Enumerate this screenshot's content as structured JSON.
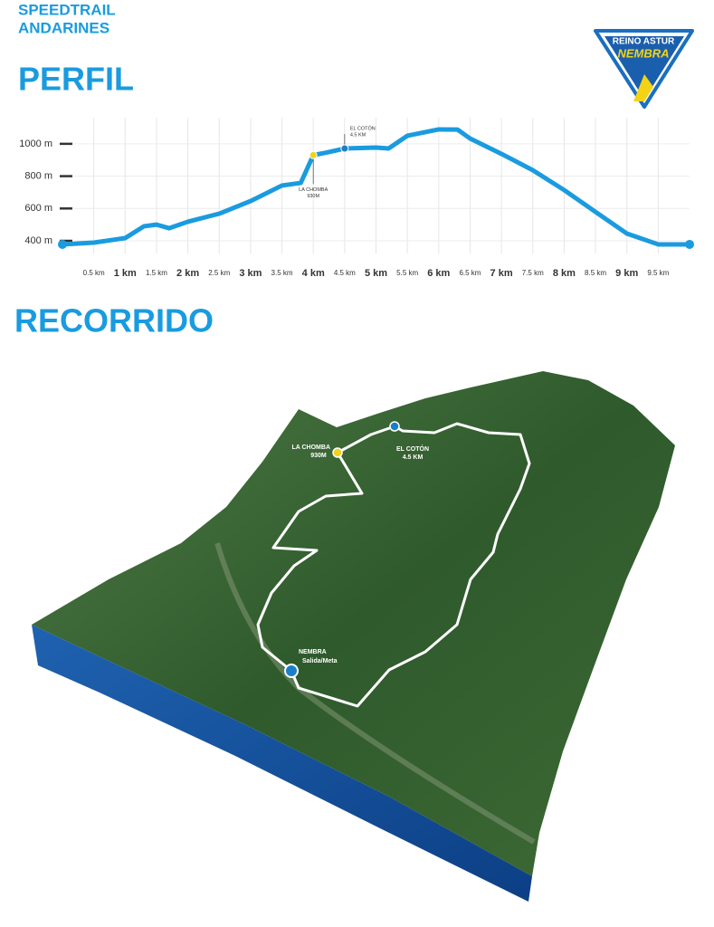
{
  "header": {
    "lines": [
      "SPEEDTRAIL",
      "ANDARINES"
    ]
  },
  "logo": {
    "lines": [
      "REINO ASTUR",
      "NEMBRA"
    ]
  },
  "chart_data": {
    "type": "line",
    "title": "PERFIL",
    "color": "#1a9be0",
    "x": [
      0,
      0.5,
      1,
      1.3,
      1.5,
      1.7,
      2,
      2.5,
      3,
      3.5,
      3.8,
      4,
      4.2,
      4.5,
      5,
      5.2,
      5.5,
      6,
      6.3,
      6.5,
      7,
      7.5,
      8,
      8.5,
      9,
      9.5,
      10
    ],
    "values": [
      378,
      389,
      417,
      490,
      500,
      478,
      518,
      568,
      646,
      742,
      758,
      930,
      945,
      971,
      977,
      971,
      1050,
      1089,
      1088,
      1033,
      938,
      837,
      714,
      579,
      445,
      378,
      378
    ],
    "xlim": [
      0,
      10
    ],
    "ylim": [
      320,
      1160
    ],
    "xticks": [
      {
        "value": 0.5,
        "label": "0.5 km"
      },
      {
        "value": 1,
        "label": "1 km"
      },
      {
        "value": 1.5,
        "label": "1.5 km"
      },
      {
        "value": 2,
        "label": "2 km"
      },
      {
        "value": 2.5,
        "label": "2.5 km"
      },
      {
        "value": 3,
        "label": "3 km"
      },
      {
        "value": 3.5,
        "label": "3.5 km"
      },
      {
        "value": 4,
        "label": "4 km"
      },
      {
        "value": 4.5,
        "label": "4.5 km"
      },
      {
        "value": 5,
        "label": "5 km"
      },
      {
        "value": 5.5,
        "label": "5.5 km"
      },
      {
        "value": 6,
        "label": "6 km"
      },
      {
        "value": 6.5,
        "label": "6.5 km"
      },
      {
        "value": 7,
        "label": "7 km"
      },
      {
        "value": 7.5,
        "label": "7.5 km"
      },
      {
        "value": 8,
        "label": "8 km"
      },
      {
        "value": 8.5,
        "label": "8.5 km"
      },
      {
        "value": 9,
        "label": "9 km"
      },
      {
        "value": 9.5,
        "label": "9.5 km"
      }
    ],
    "yticks": [
      {
        "value": 400,
        "label": "400 m"
      },
      {
        "value": 600,
        "label": "600 m"
      },
      {
        "value": 800,
        "label": "800 m"
      },
      {
        "value": 1000,
        "label": "1000 m"
      }
    ],
    "grid": true,
    "markers": [
      {
        "label": "LA CHOMBA",
        "sublabel": "930M",
        "x": 4,
        "value": 930,
        "color": "#f2d21b"
      },
      {
        "label": "EL COTÓN",
        "sublabel": "4.5 KM",
        "x": 4.5,
        "value": 971,
        "color": "#1a7fc8"
      }
    ]
  },
  "map": {
    "title": "RECORRIDO",
    "points": [
      {
        "label": "LA CHOMBA",
        "sublabel": "930M"
      },
      {
        "label": "EL COTÓN",
        "sublabel": "4.5 KM"
      },
      {
        "label": "NEMBRA",
        "sublabel": "Salida/Meta"
      }
    ]
  }
}
